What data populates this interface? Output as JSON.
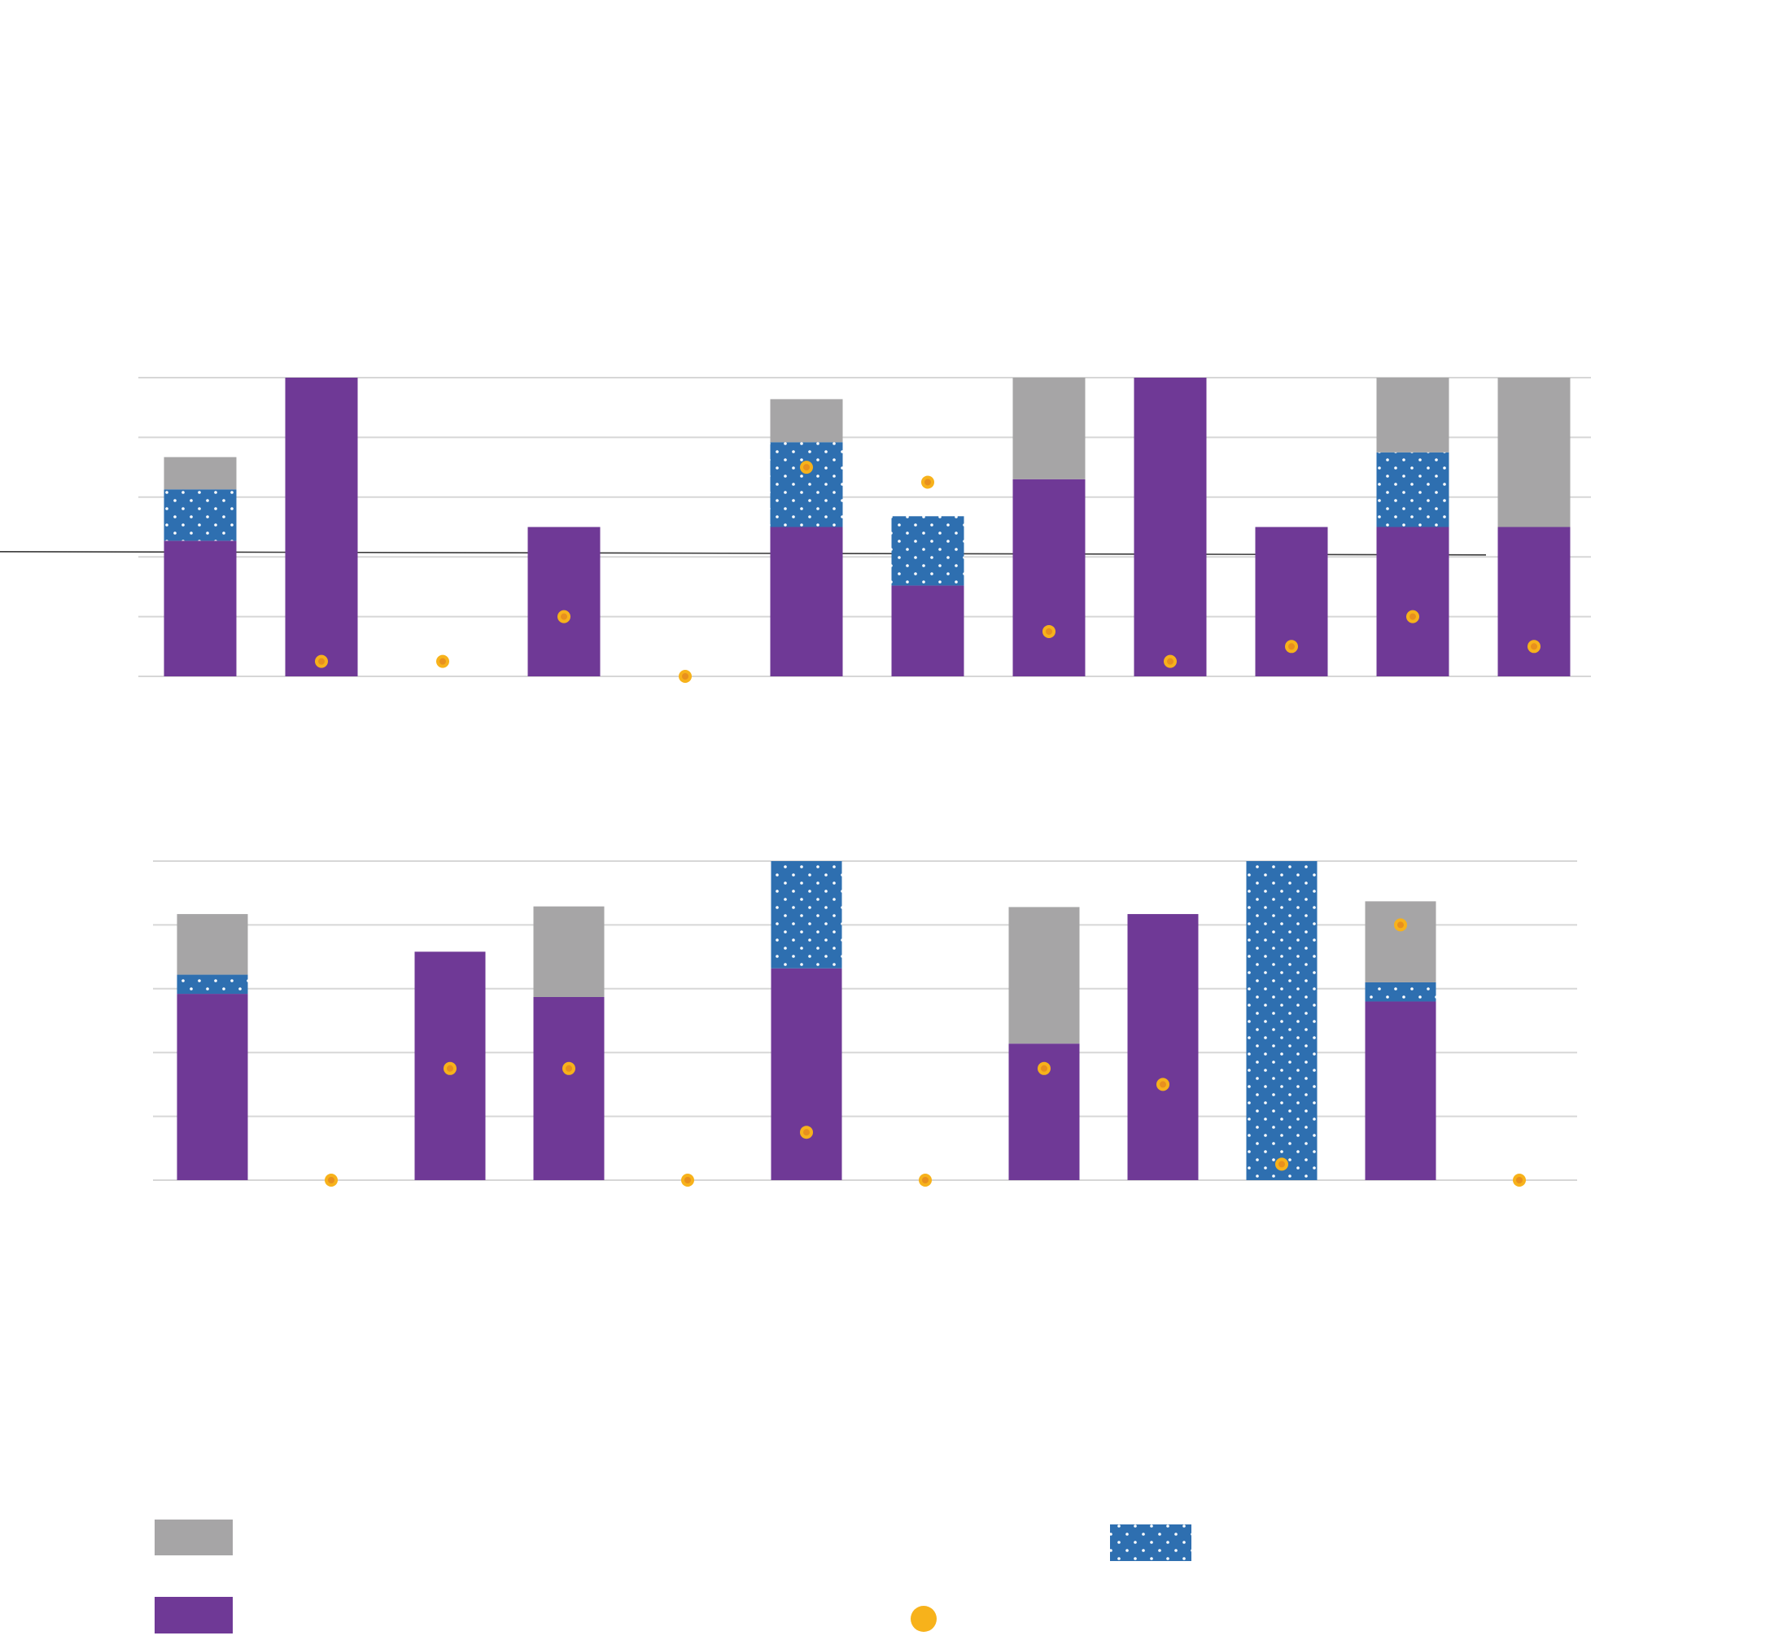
{
  "colors": {
    "gray": "#a6a5a6",
    "blue": "#2e6fb0",
    "purple": "#6f3996",
    "yellow": "#f7b21b",
    "dot_inner": "#e8901e",
    "grid": "#d7d7d7"
  },
  "chart_data": [
    {
      "type": "bar",
      "stacked": true,
      "title": "",
      "xlabel": "",
      "ylabel": "",
      "ylim": [
        0,
        5
      ],
      "grid": true,
      "tick_labels_visible": false,
      "reference_line_y": 2.06,
      "categories": [
        "",
        "",
        "",
        "",
        "",
        "",
        "",
        "",
        "",
        "",
        "",
        ""
      ],
      "series": [
        {
          "segment": "purple",
          "values": [
            2.27,
            5.0,
            0,
            2.5,
            0,
            2.5,
            1.52,
            3.3,
            5.0,
            2.5,
            2.5,
            2.5
          ]
        },
        {
          "segment": "blue-dotted",
          "values": [
            0.86,
            0,
            0,
            0,
            0,
            1.42,
            1.16,
            0,
            0,
            0,
            1.25,
            0
          ]
        },
        {
          "segment": "gray",
          "values": [
            0.54,
            0,
            0,
            0,
            0,
            0.72,
            0,
            1.7,
            0,
            0,
            1.25,
            2.5
          ]
        },
        {
          "segment": "yellow-dot",
          "kind": "scatter",
          "values": [
            null,
            0.25,
            0.25,
            1.0,
            0,
            3.5,
            3.25,
            0.75,
            0.25,
            0.5,
            1.0,
            0.5
          ]
        }
      ]
    },
    {
      "type": "bar",
      "stacked": true,
      "title": "",
      "xlabel": "",
      "ylabel": "",
      "ylim": [
        0,
        5
      ],
      "grid": true,
      "tick_labels_visible": false,
      "categories": [
        "",
        "",
        "",
        "",
        "",
        "",
        "",
        "",
        "",
        "",
        "",
        ""
      ],
      "series": [
        {
          "segment": "purple",
          "values": [
            2.92,
            0,
            3.58,
            2.87,
            0,
            3.32,
            0,
            2.14,
            4.17,
            0,
            2.8,
            0
          ]
        },
        {
          "segment": "blue-dotted",
          "values": [
            0.3,
            0,
            0,
            0,
            0,
            1.68,
            0,
            0,
            0,
            5.0,
            0.3,
            0
          ]
        },
        {
          "segment": "gray",
          "values": [
            0.95,
            0,
            0,
            1.42,
            0,
            0,
            0,
            2.14,
            0,
            0,
            1.27,
            0
          ]
        },
        {
          "segment": "yellow-dot",
          "kind": "scatter",
          "values": [
            null,
            0,
            1.75,
            1.75,
            0,
            0.75,
            0,
            1.75,
            1.5,
            0.25,
            4.0,
            0
          ]
        }
      ]
    }
  ],
  "legend": [
    {
      "swatch": "gray",
      "label": ""
    },
    {
      "swatch": "blue-dotted",
      "label": ""
    },
    {
      "swatch": "purple",
      "label": ""
    },
    {
      "swatch": "yellow-dot",
      "label": ""
    }
  ]
}
